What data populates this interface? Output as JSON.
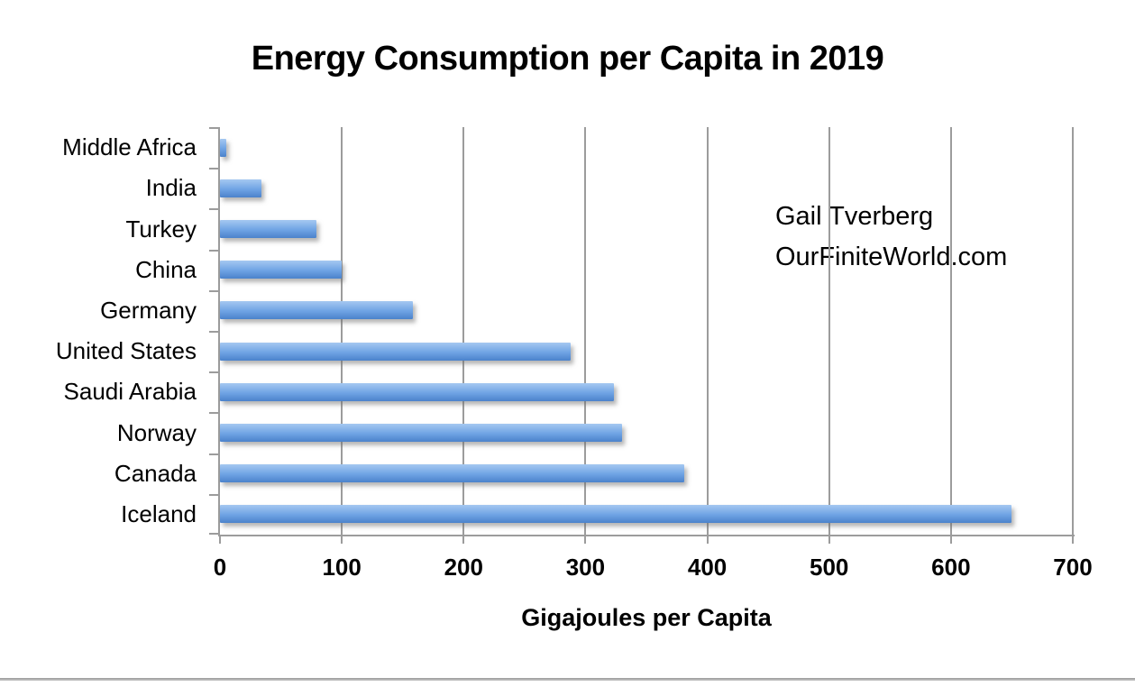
{
  "chart_data": {
    "type": "bar",
    "orientation": "horizontal",
    "title": "Energy Consumption per Capita in 2019",
    "xlabel": "Gigajoules per Capita",
    "categories": [
      "Middle Africa",
      "India",
      "Turkey",
      "China",
      "Germany",
      "United States",
      "Saudi Arabia",
      "Norway",
      "Canada",
      "Iceland"
    ],
    "values": [
      5,
      34,
      79,
      100,
      158,
      288,
      323,
      330,
      381,
      650
    ],
    "xlim": [
      0,
      700
    ],
    "x_ticks": [
      0,
      100,
      200,
      300,
      400,
      500,
      600,
      700
    ],
    "grid": "vertical gridlines at each x tick, no horizontal gridlines",
    "legend": "none",
    "annotation": {
      "lines": [
        "Gail Tverberg",
        "OurFiniteWorld.com"
      ]
    },
    "colors": {
      "bar_top": "#a5c8f1",
      "bar_mid": "#6fa3e4",
      "bar_bottom": "#4b82cb",
      "grid": "#9c9c9c",
      "axis": "#9c9c9c",
      "text": "#000000",
      "divider": "#a9a9a9"
    }
  }
}
